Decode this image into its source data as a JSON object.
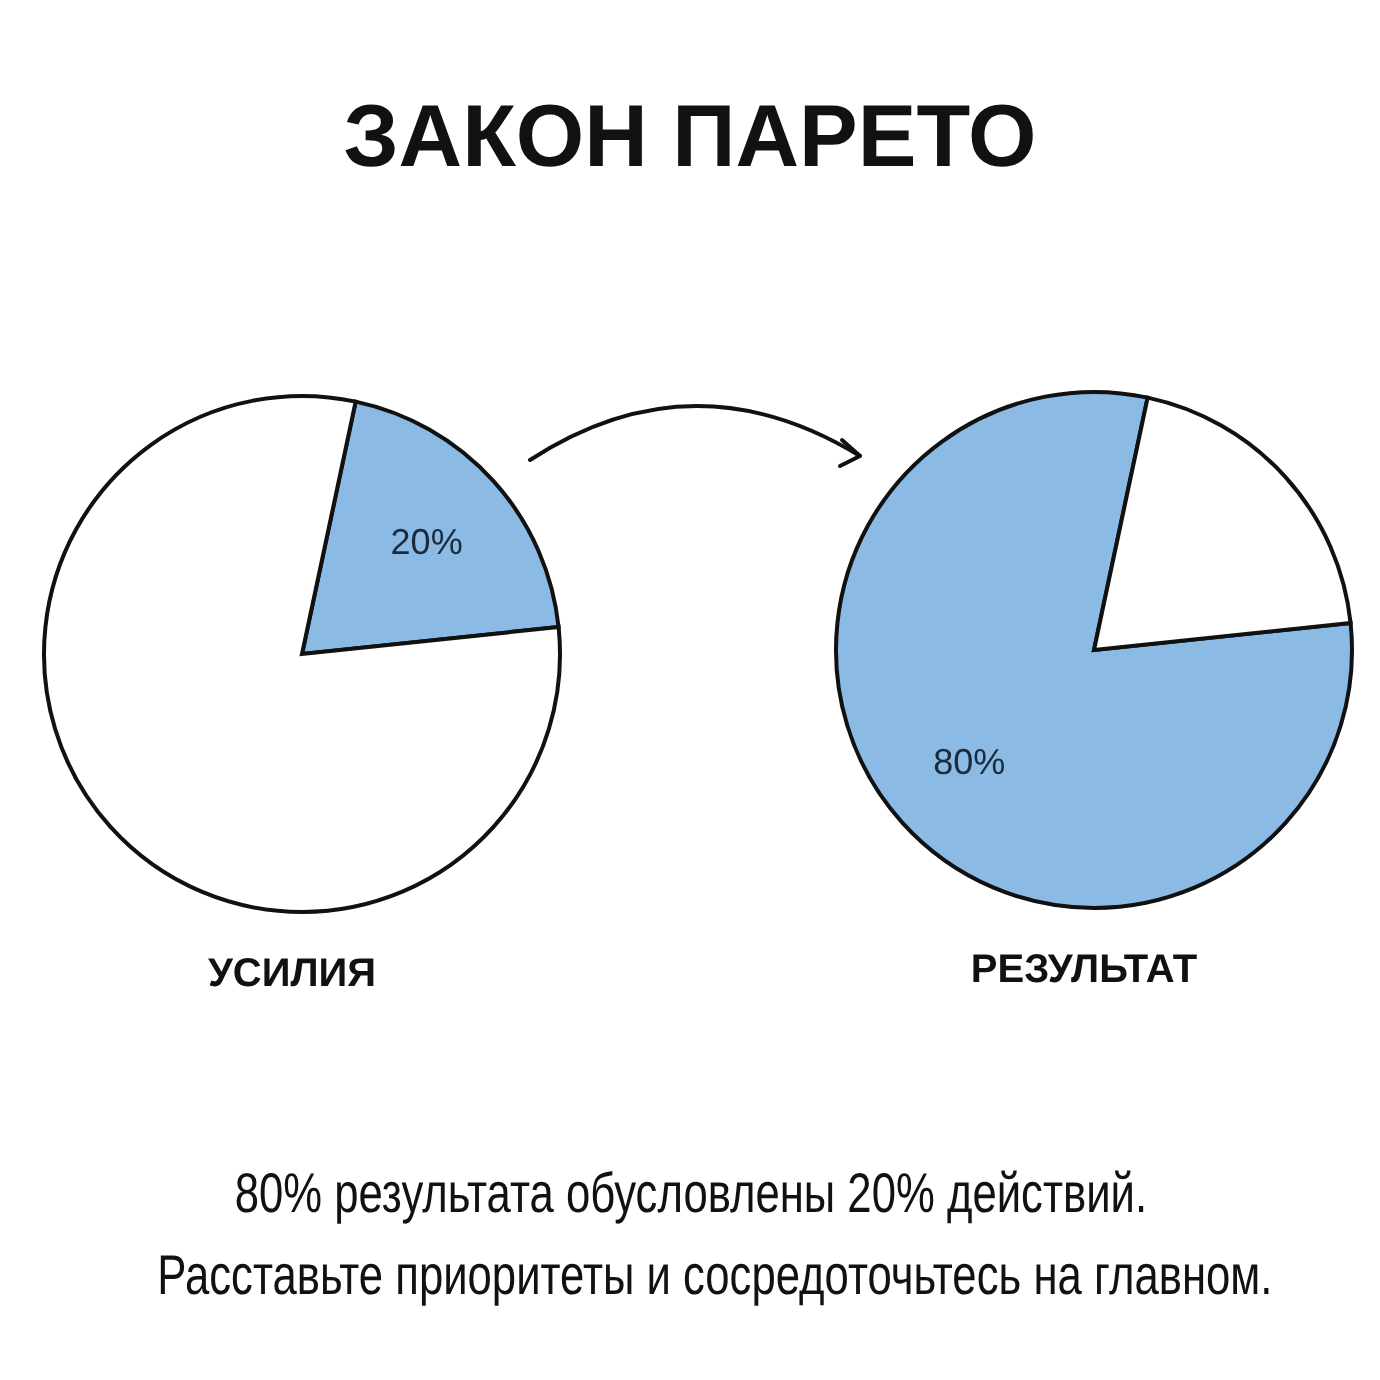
{
  "chart_data": [
    {
      "type": "other",
      "title": "ЗАКОН ПАРЕТО"
    },
    {
      "type": "pie",
      "title": "УСИЛИЯ",
      "categories": [
        null,
        null
      ],
      "values": [
        20,
        80
      ],
      "colors": [
        "#8bbbe5",
        "#ffffff"
      ],
      "value_labels": [
        "20%",
        null
      ]
    },
    {
      "type": "pie",
      "title": "РЕЗУЛЬТАТ",
      "categories": [
        null,
        null
      ],
      "values": [
        80,
        20
      ],
      "colors": [
        "#8bbbe5",
        "#ffffff"
      ],
      "value_labels": [
        "80%",
        null
      ]
    },
    {
      "type": "other",
      "annotations": [
        "80% результата обусловлены 20% действий.",
        "Расставьте приоритеты и сосредоточьтесь на главном."
      ]
    }
  ]
}
